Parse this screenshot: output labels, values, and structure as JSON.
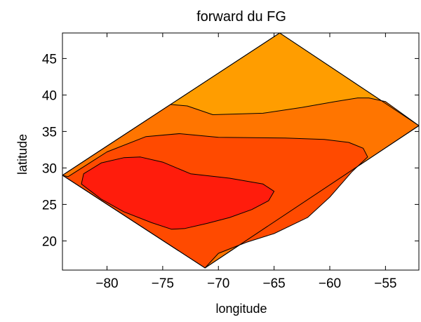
{
  "chart_data": {
    "type": "contour",
    "title": "forward du FG",
    "xlabel": "longitude",
    "ylabel": "latitude",
    "xlim": [
      -84,
      -52
    ],
    "ylim": [
      16,
      48.5
    ],
    "xticks": [
      -80,
      -75,
      -70,
      -65,
      -60,
      -55
    ],
    "yticks": [
      20,
      25,
      30,
      35,
      40,
      45
    ],
    "grid": false,
    "legend": "none",
    "domain_outline": [
      [
        -84,
        29
      ],
      [
        -64.5,
        48.5
      ],
      [
        -52,
        35.8
      ],
      [
        -71.2,
        16.3
      ]
    ],
    "levels": [
      {
        "level": 1,
        "color": "#ff9d00",
        "points": [
          [
            -84,
            29
          ],
          [
            -64.5,
            48.5
          ],
          [
            -52,
            35.8
          ],
          [
            -71.2,
            16.3
          ]
        ]
      },
      {
        "level": 2,
        "color": "#ff7500",
        "points": [
          [
            -74.3,
            38.7
          ],
          [
            -72.8,
            38.5
          ],
          [
            -70.5,
            37.3
          ],
          [
            -66,
            37.5
          ],
          [
            -62.5,
            38.3
          ],
          [
            -59.5,
            39.1
          ],
          [
            -57.5,
            39.6
          ],
          [
            -56.5,
            39.6
          ],
          [
            -55,
            39.1
          ],
          [
            -52,
            35.8
          ],
          [
            -71.2,
            16.3
          ],
          [
            -84,
            29
          ]
        ]
      },
      {
        "level": 3,
        "color": "#ff4a00",
        "points": [
          [
            -83.5,
            28.8
          ],
          [
            -80,
            32.2
          ],
          [
            -76.5,
            34.3
          ],
          [
            -73.5,
            34.7
          ],
          [
            -70,
            34.2
          ],
          [
            -64,
            34.1
          ],
          [
            -60.5,
            33.9
          ],
          [
            -58.3,
            33.5
          ],
          [
            -57,
            32.7
          ],
          [
            -56.6,
            31.5
          ],
          [
            -58,
            29.5
          ],
          [
            -60,
            26
          ],
          [
            -62,
            23.2
          ],
          [
            -65,
            21
          ],
          [
            -67.5,
            19.8
          ],
          [
            -70,
            18.3
          ],
          [
            -71.2,
            16.3
          ],
          [
            -84,
            29
          ]
        ]
      },
      {
        "level": 4,
        "color": "#ff1c0c",
        "points": [
          [
            -82.3,
            27.8
          ],
          [
            -82.1,
            29.2
          ],
          [
            -80.5,
            30.7
          ],
          [
            -78.5,
            31.4
          ],
          [
            -77,
            31.5
          ],
          [
            -75,
            30.8
          ],
          [
            -72.5,
            29.2
          ],
          [
            -69,
            28.6
          ],
          [
            -66,
            27.8
          ],
          [
            -65,
            26.8
          ],
          [
            -65.5,
            25.5
          ],
          [
            -67,
            24.3
          ],
          [
            -69,
            23.2
          ],
          [
            -71,
            22.4
          ],
          [
            -73,
            21.7
          ],
          [
            -74.2,
            21.6
          ],
          [
            -76,
            22.5
          ],
          [
            -78.5,
            24
          ],
          [
            -80.5,
            25.7
          ],
          [
            -82.3,
            27.8
          ]
        ]
      }
    ]
  }
}
